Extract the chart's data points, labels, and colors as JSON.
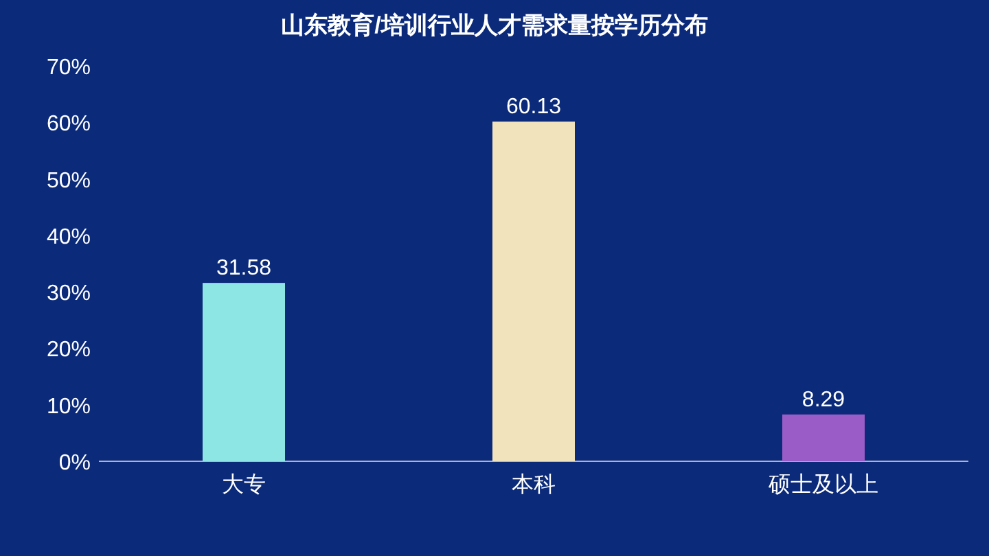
{
  "chart_data": {
    "type": "bar",
    "title": "山东教育/培训行业人才需求量按学历分布",
    "categories": [
      "大专",
      "本科",
      "硕士及以上"
    ],
    "values": [
      31.58,
      60.13,
      8.29
    ],
    "colors": [
      "#8ee6e4",
      "#f1e4bd",
      "#9a5cc6"
    ],
    "ylim": [
      0,
      70
    ],
    "yticks": [
      {
        "value": 0,
        "label": "0%"
      },
      {
        "value": 10,
        "label": "10%"
      },
      {
        "value": 20,
        "label": "20%"
      },
      {
        "value": 30,
        "label": "30%"
      },
      {
        "value": 40,
        "label": "40%"
      },
      {
        "value": 50,
        "label": "50%"
      },
      {
        "value": 60,
        "label": "60%"
      },
      {
        "value": 70,
        "label": "70%"
      }
    ],
    "data_labels": true,
    "grid": false,
    "legend": false
  }
}
